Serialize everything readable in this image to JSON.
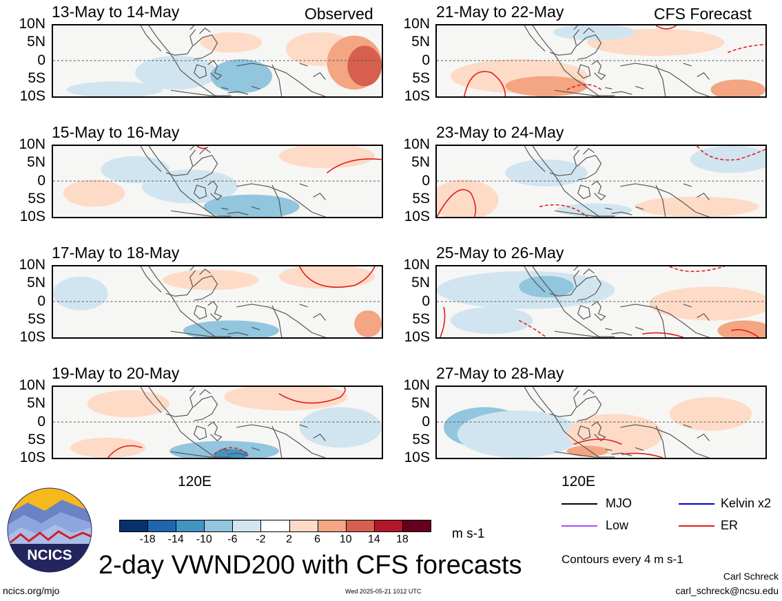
{
  "header": {
    "left_label": "Observed",
    "right_label": "CFS Forecast"
  },
  "lat_ticks": [
    "10N",
    "5N",
    "0",
    "5S",
    "10S"
  ],
  "lon_tick": "120E",
  "panels": [
    {
      "date": "13-May to 14-May",
      "kind": "observed"
    },
    {
      "date": "15-May to 16-May",
      "kind": "observed"
    },
    {
      "date": "17-May to 18-May",
      "kind": "observed"
    },
    {
      "date": "19-May to 20-May",
      "kind": "observed"
    },
    {
      "date": "21-May to 22-May",
      "kind": "forecast"
    },
    {
      "date": "23-May to 24-May",
      "kind": "forecast"
    },
    {
      "date": "25-May to 26-May",
      "kind": "forecast"
    },
    {
      "date": "27-May to 28-May",
      "kind": "forecast"
    }
  ],
  "colorbar": {
    "labels": [
      "-18",
      "-14",
      "-10",
      "-6",
      "-2",
      "2",
      "6",
      "10",
      "14",
      "18"
    ],
    "colors": [
      "#08306b",
      "#2166ac",
      "#4393c3",
      "#92c5de",
      "#d1e5f0",
      "#ffffff",
      "#fddbc7",
      "#f4a582",
      "#d6604d",
      "#b2182b",
      "#67001f"
    ],
    "units": "m s-1"
  },
  "legend": {
    "items": [
      {
        "label": "MJO",
        "color": "#000000"
      },
      {
        "label": "Kelvin x2",
        "color": "#0000cc"
      },
      {
        "label": "Low",
        "color": "#a64dff"
      },
      {
        "label": "ER",
        "color": "#e01b1b"
      }
    ],
    "contour_note": "Contours every 4 m s-1"
  },
  "logo": {
    "text": "NCICS"
  },
  "footer": {
    "title": "2-day VWND200 with CFS forecasts",
    "url": "ncics.org/mjo",
    "timestamp": "Wed 2025-05-21 1012 UTC",
    "author": "Carl Schreck",
    "email": "carl_schreck@ncsu.edu"
  }
}
